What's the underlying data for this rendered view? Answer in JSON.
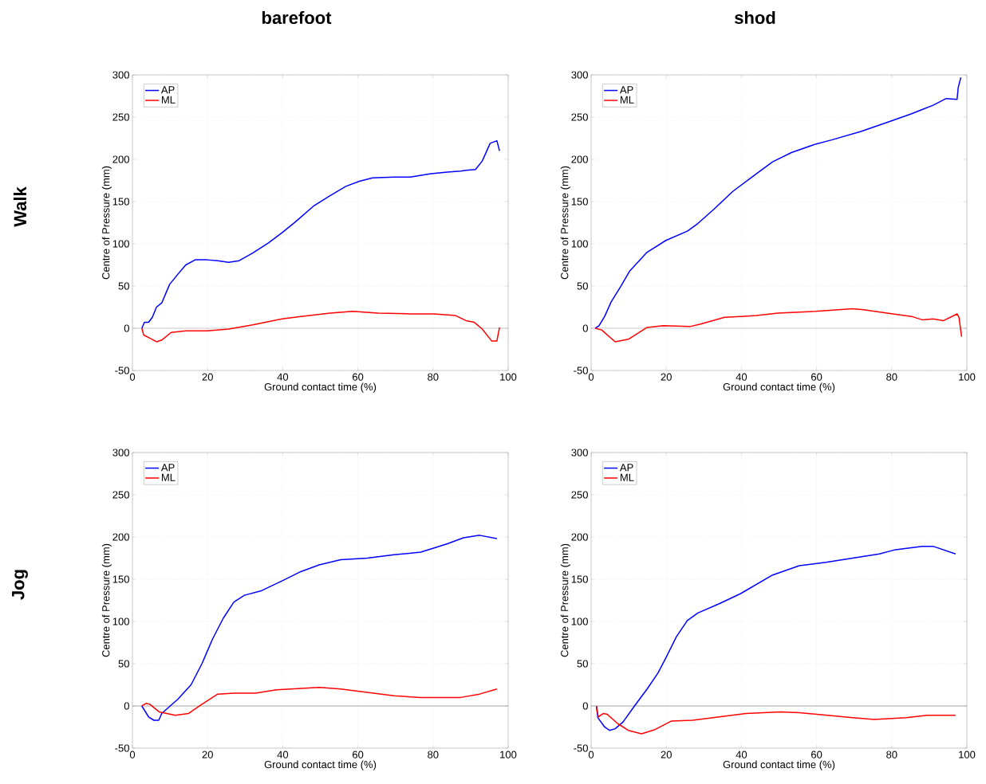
{
  "chart_data": [
    {
      "type": "line",
      "title": "barefoot",
      "subtitle": "Walk",
      "xlabel": "Ground contact time (%)",
      "ylabel": "Centre of Pressure (mm)",
      "xlim": [
        0,
        100
      ],
      "ylim": [
        -50,
        300
      ],
      "xticks": [
        0,
        20,
        40,
        60,
        80,
        100
      ],
      "yticks": [
        -50,
        0,
        50,
        100,
        150,
        200,
        250,
        300
      ],
      "grid": true,
      "legend": "top left",
      "ref_lines": [
        {
          "axis": "y",
          "value": 0,
          "color": "#808080"
        }
      ],
      "series": [
        {
          "name": "AP",
          "color": "#0000ff",
          "x": [
            2.5,
            3.2,
            4.3,
            5.3,
            6.4,
            7.8,
            9.9,
            12.1,
            14.2,
            16.7,
            19.9,
            22.7,
            25.6,
            28.4,
            32,
            36.2,
            39.8,
            43.4,
            48.3,
            52.6,
            56.8,
            60.4,
            63.9,
            69.6,
            73.9,
            79.5,
            83.8,
            87.3,
            88.8,
            91.3,
            93.1,
            95.2,
            97,
            97.7
          ],
          "values": [
            0,
            7,
            7,
            13,
            25,
            30,
            52,
            64,
            75,
            81,
            81,
            80,
            78,
            80,
            89,
            101,
            113,
            126,
            145,
            157,
            168,
            174,
            178,
            179,
            179,
            183,
            185,
            186,
            187,
            188,
            198,
            219,
            222,
            210
          ]
        },
        {
          "name": "ML",
          "color": "#ff0000",
          "x": [
            2.5,
            3,
            4.3,
            6.4,
            7.8,
            10.3,
            14.2,
            19.9,
            25.6,
            32,
            39.8,
            44.8,
            52.6,
            58.6,
            65.4,
            73.9,
            80.3,
            86,
            88.8,
            91,
            93.1,
            95.6,
            97,
            97.7
          ],
          "values": [
            0,
            -8,
            -11,
            -16,
            -14,
            -5,
            -3,
            -3,
            -1,
            4,
            11,
            14,
            18,
            20,
            18,
            17,
            17,
            15,
            9,
            7,
            -1,
            -15,
            -15,
            1
          ]
        }
      ]
    },
    {
      "type": "line",
      "title": "shod",
      "xlabel": "Ground contact time (%)",
      "ylabel": "Centre of Pressure (mm)",
      "xlim": [
        0,
        100
      ],
      "ylim": [
        -50,
        300
      ],
      "xticks": [
        0,
        20,
        40,
        60,
        80,
        100
      ],
      "yticks": [
        -50,
        0,
        50,
        100,
        150,
        200,
        250,
        300
      ],
      "grid": true,
      "legend": "top left",
      "ref_lines": [
        {
          "axis": "y",
          "value": 0,
          "color": "#808080"
        }
      ],
      "series": [
        {
          "name": "AP",
          "color": "#0000ff",
          "x": [
            1.1,
            2.1,
            3.6,
            5.3,
            7.8,
            10.3,
            14.9,
            19.9,
            25.6,
            28.4,
            32.7,
            37.7,
            43.4,
            48.3,
            53.3,
            59.7,
            64,
            71.8,
            79.6,
            85.3,
            88.1,
            91,
            94.5,
            97.4,
            97.7,
            98.4
          ],
          "values": [
            0,
            3,
            14,
            31,
            49,
            68,
            90,
            104,
            115,
            124,
            141,
            162,
            181,
            197,
            208,
            218,
            223,
            233,
            245,
            254,
            259,
            264,
            272,
            271,
            285,
            297
          ]
        },
        {
          "name": "ML",
          "color": "#ff0000",
          "x": [
            1.1,
            2.8,
            6.4,
            9.9,
            14.9,
            19.2,
            26.3,
            29.1,
            35.5,
            39.8,
            44,
            49.7,
            59.7,
            69.6,
            72.5,
            80.3,
            85.3,
            88.1,
            91,
            93.8,
            97.4,
            97.9,
            98.6
          ],
          "values": [
            0,
            -2,
            -16,
            -13,
            1,
            3,
            2,
            5,
            13,
            14,
            15,
            18,
            20,
            23,
            22,
            17,
            14,
            10,
            11,
            9,
            17,
            13,
            -10
          ]
        }
      ]
    },
    {
      "type": "line",
      "subtitle": "Jog",
      "xlabel": "Ground contact time (%)",
      "ylabel": "Centre of Pressure (mm)",
      "xlim": [
        0,
        100
      ],
      "ylim": [
        -50,
        300
      ],
      "xticks": [
        0,
        20,
        40,
        60,
        80,
        100
      ],
      "yticks": [
        -50,
        0,
        50,
        100,
        150,
        200,
        250,
        300
      ],
      "grid": true,
      "legend": "top left",
      "ref_lines": [
        {
          "axis": "y",
          "value": 0,
          "color": "#808080"
        }
      ],
      "series": [
        {
          "name": "AP",
          "color": "#0000ff",
          "x": [
            2.5,
            4.3,
            5.7,
            7,
            7.8,
            12.1,
            15.6,
            18.5,
            21.3,
            24.2,
            27,
            29.8,
            34.1,
            39.8,
            44.8,
            49.7,
            55.4,
            62.5,
            69.6,
            76.7,
            80.3,
            83.8,
            88.1,
            92.4,
            97
          ],
          "values": [
            0,
            -13,
            -17,
            -17,
            -9,
            8,
            25,
            50,
            79,
            104,
            123,
            131,
            136,
            148,
            159,
            167,
            173,
            175,
            179,
            182,
            187,
            192,
            199,
            202,
            198
          ]
        },
        {
          "name": "ML",
          "color": "#ff0000",
          "x": [
            2.5,
            3.6,
            4.6,
            7.1,
            11.4,
            14.9,
            18.5,
            22.7,
            27,
            32.7,
            38.4,
            49.7,
            55.4,
            62.5,
            69.6,
            76.7,
            87.3,
            92.4,
            97
          ],
          "values": [
            0,
            3,
            2,
            -7,
            -11,
            -9,
            2,
            14,
            15,
            15,
            19,
            22,
            20,
            16,
            12,
            10,
            10,
            14,
            20
          ]
        }
      ]
    },
    {
      "type": "line",
      "xlabel": "Ground contact time (%)",
      "ylabel": "Centre of Pressure (mm)",
      "xlim": [
        0,
        100
      ],
      "ylim": [
        -50,
        300
      ],
      "xticks": [
        0,
        20,
        40,
        60,
        80,
        100
      ],
      "yticks": [
        -50,
        0,
        50,
        100,
        150,
        200,
        250,
        300
      ],
      "grid": true,
      "legend": "top left",
      "ref_lines": [
        {
          "axis": "y",
          "value": 0,
          "color": "#808080"
        }
      ],
      "series": [
        {
          "name": "AP",
          "color": "#0000ff",
          "x": [
            1.4,
            1.8,
            3.6,
            4.9,
            6.4,
            8.5,
            11.4,
            14.9,
            17.8,
            19.9,
            22.7,
            25.6,
            28.4,
            34.1,
            39.8,
            48.3,
            55.4,
            62.5,
            69.6,
            76.7,
            81,
            88.1,
            91,
            97
          ],
          "values": [
            0,
            -14,
            -25,
            -29,
            -27,
            -19,
            -1,
            20,
            39,
            57,
            82,
            101,
            110,
            121,
            133,
            155,
            166,
            170,
            175,
            180,
            185,
            189,
            189,
            180
          ]
        },
        {
          "name": "ML",
          "color": "#ff0000",
          "x": [
            1.4,
            1.9,
            3.2,
            4.3,
            7.1,
            9.9,
            13.4,
            17,
            21.3,
            27,
            34.1,
            41.2,
            50.5,
            55.4,
            62.5,
            69.6,
            75.3,
            83.8,
            89.5,
            97
          ],
          "values": [
            0,
            -13,
            -9,
            -10,
            -21,
            -29,
            -33,
            -28,
            -18,
            -17,
            -13,
            -9,
            -7,
            -8,
            -11,
            -14,
            -16,
            -14,
            -11,
            -11
          ]
        }
      ]
    }
  ]
}
